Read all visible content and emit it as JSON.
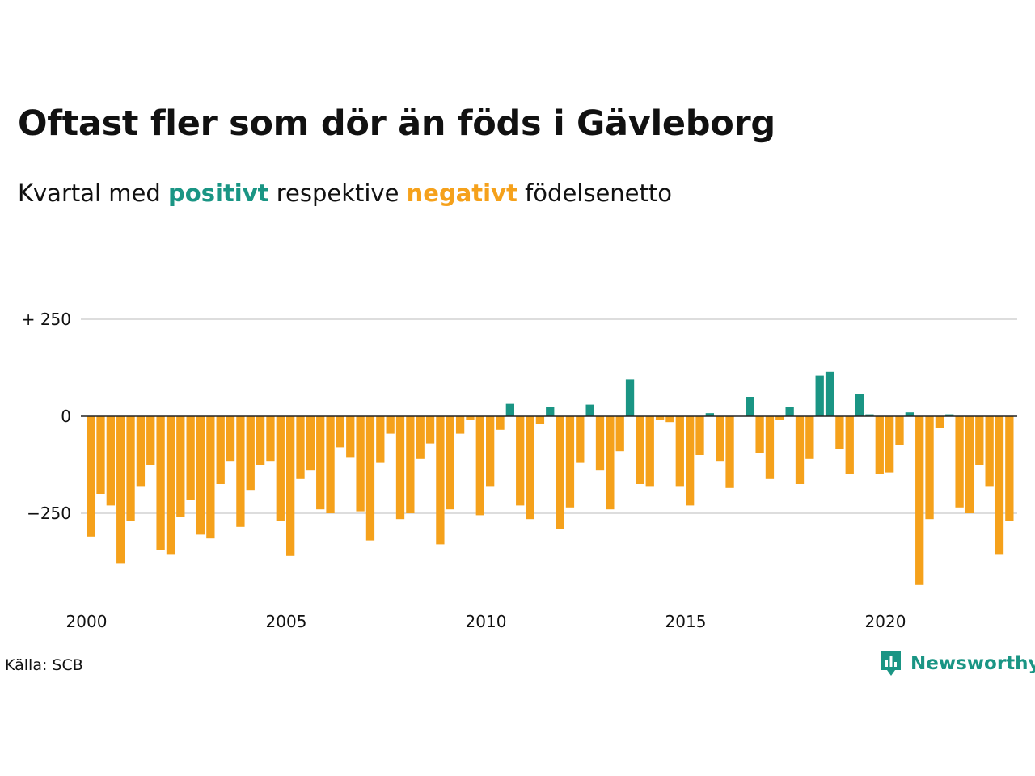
{
  "header": {
    "title": "Oftast fler som dör än föds i Gävleborg",
    "subtitle_pre": "Kvartal med",
    "subtitle_pos": "positivt",
    "subtitle_mid": "respektive",
    "subtitle_neg": "negativt",
    "subtitle_post": "födelsenetto"
  },
  "footer": {
    "source": "Källa: SCB",
    "brand": "Newsworthy"
  },
  "colors": {
    "positive": "#1a9584",
    "negative": "#f5a11b",
    "grid": "#dddddd",
    "zero_line": "#222222"
  },
  "chart_data": {
    "type": "bar",
    "title": "Oftast fler som dör än föds i Gävleborg",
    "x_unit": "quarter",
    "x_start": "2000 Q1",
    "x_ticks": [
      "2000",
      "2005",
      "2010",
      "2015",
      "2020"
    ],
    "y_tick_values": [
      250,
      0,
      -250
    ],
    "y_tick_labels": [
      "+ 250",
      "0",
      "−250"
    ],
    "ylim": [
      -430,
      250
    ],
    "grid": true,
    "legend": "none",
    "series": [
      {
        "values": [
          -310,
          -200,
          -230,
          -380,
          -270,
          -180,
          -125,
          -345,
          -355,
          -260,
          -215,
          -305,
          -315,
          -175,
          -115,
          -285,
          -190,
          -125,
          -115,
          -270,
          -360,
          -160,
          -140,
          -240,
          -250,
          -80,
          -105,
          -245,
          -320,
          -120,
          -45,
          -265,
          -250,
          -110,
          -70,
          -330,
          -240,
          -45,
          -10,
          -255,
          -180,
          -35,
          32,
          -230,
          -265,
          -20,
          25,
          -290,
          -235,
          -120,
          30,
          -140,
          -240,
          -90,
          95,
          -175,
          -180,
          -10,
          -15,
          -180,
          -230,
          -100,
          8,
          -115,
          -185,
          0,
          50,
          -95,
          -160,
          -10,
          25,
          -175,
          -110,
          105,
          115,
          -85,
          -150,
          58,
          5,
          -150,
          -145,
          -75,
          10,
          -435,
          -265,
          -30,
          5,
          -235,
          -250,
          -125,
          -180,
          -355,
          -270
        ]
      }
    ]
  }
}
